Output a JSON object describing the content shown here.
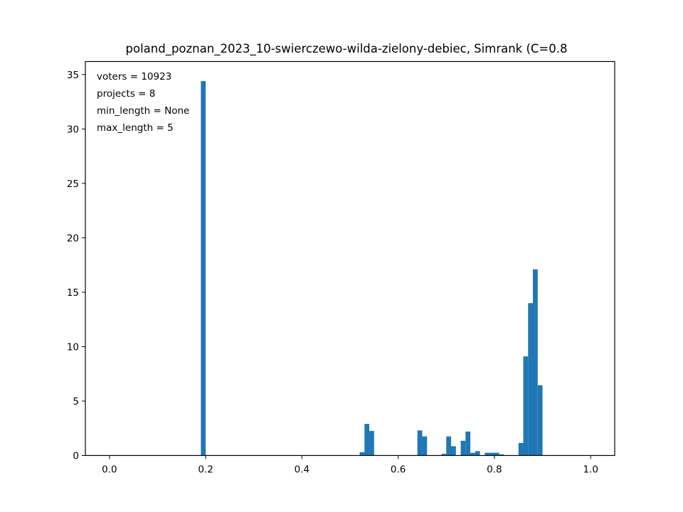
{
  "chart_data": {
    "type": "bar",
    "title": "poland_poznan_2023_10-swierczewo-wilda-zielony-debiec, Simrank (C=0.8",
    "xlabel": "",
    "ylabel": "",
    "xlim": [
      -0.05,
      1.05
    ],
    "ylim": [
      0,
      36.2
    ],
    "xticks": [
      0.0,
      0.2,
      0.4,
      0.6,
      0.8,
      1.0
    ],
    "xtick_labels": [
      "0.0",
      "0.2",
      "0.4",
      "0.6",
      "0.8",
      "1.0"
    ],
    "yticks": [
      0,
      5,
      10,
      15,
      20,
      25,
      30,
      35
    ],
    "ytick_labels": [
      "0",
      "5",
      "10",
      "15",
      "20",
      "25",
      "30",
      "35"
    ],
    "bin_width": 0.01,
    "bar_color": "#1f77b4",
    "grid": false,
    "annotations": [
      "voters = 10923",
      "projects = 8",
      "min_length = None",
      "max_length = 5"
    ],
    "bins": [
      {
        "x": 0.19,
        "value": 34.4
      },
      {
        "x": 0.52,
        "value": 0.3
      },
      {
        "x": 0.53,
        "value": 2.9
      },
      {
        "x": 0.54,
        "value": 2.25
      },
      {
        "x": 0.64,
        "value": 2.3
      },
      {
        "x": 0.65,
        "value": 1.75
      },
      {
        "x": 0.69,
        "value": 0.15
      },
      {
        "x": 0.7,
        "value": 1.75
      },
      {
        "x": 0.71,
        "value": 0.85
      },
      {
        "x": 0.73,
        "value": 1.35
      },
      {
        "x": 0.74,
        "value": 2.2
      },
      {
        "x": 0.75,
        "value": 0.25
      },
      {
        "x": 0.76,
        "value": 0.4
      },
      {
        "x": 0.78,
        "value": 0.25
      },
      {
        "x": 0.79,
        "value": 0.25
      },
      {
        "x": 0.8,
        "value": 0.25
      },
      {
        "x": 0.81,
        "value": 0.1
      },
      {
        "x": 0.85,
        "value": 1.15
      },
      {
        "x": 0.86,
        "value": 9.1
      },
      {
        "x": 0.87,
        "value": 14.0
      },
      {
        "x": 0.88,
        "value": 17.1
      },
      {
        "x": 0.89,
        "value": 6.45
      }
    ]
  }
}
